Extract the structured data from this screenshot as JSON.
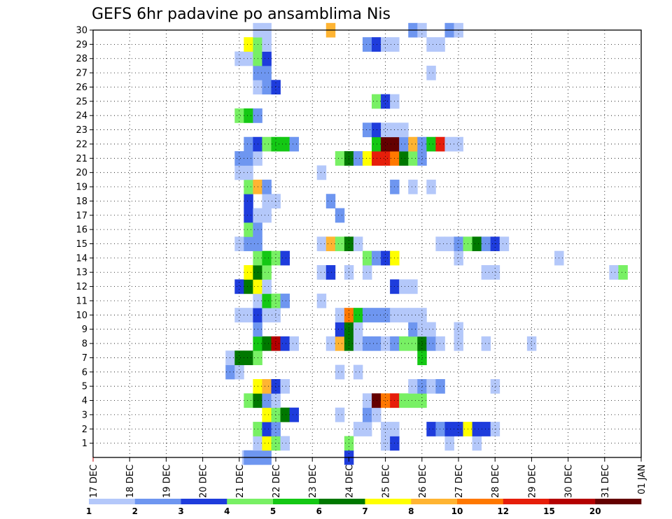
{
  "chart_data": {
    "type": "heatmap",
    "title": "GEFS 6hr padavine po ansamblima Nis",
    "x_ticks": [
      "17 DEC",
      "18 DEC",
      "19 DEC",
      "20 DEC",
      "21 DEC",
      "22 DEC",
      "23 DEC",
      "24 DEC",
      "25 DEC",
      "26 DEC",
      "27 DEC",
      "28 DEC",
      "29 DEC",
      "30 DEC",
      "31 DEC",
      "01 JAN"
    ],
    "y_ticks": [
      "1",
      "2",
      "3",
      "4",
      "5",
      "6",
      "7",
      "8",
      "9",
      "10",
      "11",
      "12",
      "13",
      "14",
      "15",
      "16",
      "17",
      "18",
      "19",
      "20",
      "21",
      "22",
      "23",
      "24",
      "25",
      "26",
      "27",
      "28",
      "29",
      "30"
    ],
    "y_range": [
      0,
      30
    ],
    "x_range": [
      "17 DEC 00Z",
      "01 JAN 00Z"
    ],
    "grid": true,
    "colorbar": {
      "position": "bottom",
      "labels": [
        "1",
        "2",
        "3",
        "4",
        "5",
        "6",
        "7",
        "8",
        "10",
        "12",
        "15",
        "20"
      ],
      "colors": [
        "#b4c8fa",
        "#6e96f0",
        "#1e3cdc",
        "#78f064",
        "#14c814",
        "#007800",
        "#ffff00",
        "#ffb432",
        "#ff7800",
        "#e61e0a",
        "#b40000",
        "#640000"
      ]
    },
    "cells": [
      [
        21.2,
        0,
        0
      ],
      [
        21.25,
        0,
        1
      ],
      [
        21.5,
        0,
        1
      ],
      [
        21.75,
        0,
        1
      ],
      [
        24.0,
        0,
        2
      ],
      [
        21.5,
        1,
        0
      ],
      [
        21.75,
        1,
        6
      ],
      [
        22.0,
        1,
        3
      ],
      [
        22.25,
        1,
        0
      ],
      [
        24.0,
        1,
        3
      ],
      [
        25.0,
        1,
        0
      ],
      [
        25.25,
        1,
        2
      ],
      [
        26.75,
        1,
        0
      ],
      [
        27.5,
        1,
        0
      ],
      [
        21.5,
        2,
        3
      ],
      [
        21.75,
        2,
        2
      ],
      [
        22.0,
        2,
        1
      ],
      [
        24.25,
        2,
        0
      ],
      [
        24.5,
        2,
        0
      ],
      [
        25.0,
        2,
        0
      ],
      [
        25.25,
        2,
        0
      ],
      [
        26.25,
        2,
        2
      ],
      [
        26.5,
        2,
        1
      ],
      [
        26.75,
        2,
        2
      ],
      [
        27.0,
        2,
        2
      ],
      [
        27.25,
        2,
        6
      ],
      [
        27.5,
        2,
        2
      ],
      [
        27.75,
        2,
        2
      ],
      [
        28.0,
        2,
        0
      ],
      [
        21.75,
        3,
        6
      ],
      [
        22.0,
        3,
        3
      ],
      [
        22.25,
        3,
        5
      ],
      [
        22.5,
        3,
        2
      ],
      [
        23.75,
        3,
        0
      ],
      [
        24.5,
        3,
        1
      ],
      [
        24.75,
        3,
        0
      ],
      [
        21.25,
        4,
        3
      ],
      [
        21.5,
        4,
        5
      ],
      [
        21.75,
        4,
        1
      ],
      [
        22.0,
        4,
        0
      ],
      [
        24.5,
        4,
        0
      ],
      [
        24.75,
        4,
        11
      ],
      [
        25.0,
        4,
        8
      ],
      [
        25.25,
        4,
        9
      ],
      [
        25.5,
        4,
        3
      ],
      [
        25.75,
        4,
        3
      ],
      [
        26.0,
        4,
        3
      ],
      [
        21.5,
        5,
        6
      ],
      [
        21.75,
        5,
        7
      ],
      [
        22.0,
        5,
        2
      ],
      [
        22.25,
        5,
        0
      ],
      [
        25.75,
        5,
        0
      ],
      [
        26.0,
        5,
        1
      ],
      [
        26.25,
        5,
        0
      ],
      [
        26.5,
        5,
        1
      ],
      [
        28.0,
        5,
        0
      ],
      [
        20.75,
        6,
        1
      ],
      [
        21.0,
        6,
        0
      ],
      [
        23.75,
        6,
        0
      ],
      [
        24.25,
        6,
        0
      ],
      [
        20.75,
        7,
        0
      ],
      [
        21.0,
        7,
        5
      ],
      [
        21.25,
        7,
        5
      ],
      [
        21.5,
        7,
        3
      ],
      [
        26.0,
        7,
        4
      ],
      [
        21.5,
        8,
        4
      ],
      [
        21.75,
        8,
        5
      ],
      [
        22.0,
        8,
        10
      ],
      [
        22.25,
        8,
        2
      ],
      [
        22.5,
        8,
        0
      ],
      [
        23.5,
        8,
        0
      ],
      [
        23.75,
        8,
        7
      ],
      [
        24.0,
        8,
        5
      ],
      [
        24.25,
        8,
        0
      ],
      [
        24.5,
        8,
        1
      ],
      [
        24.75,
        8,
        1
      ],
      [
        25.0,
        8,
        0
      ],
      [
        25.25,
        8,
        1
      ],
      [
        25.5,
        8,
        3
      ],
      [
        25.75,
        8,
        3
      ],
      [
        26.0,
        8,
        5
      ],
      [
        26.25,
        8,
        1
      ],
      [
        26.5,
        8,
        0
      ],
      [
        27.0,
        8,
        0
      ],
      [
        27.75,
        8,
        0
      ],
      [
        29.0,
        8,
        0
      ],
      [
        21.5,
        9,
        1
      ],
      [
        23.75,
        9,
        2
      ],
      [
        24.0,
        9,
        5
      ],
      [
        24.25,
        9,
        0
      ],
      [
        25.75,
        9,
        1
      ],
      [
        26.0,
        9,
        0
      ],
      [
        26.25,
        9,
        0
      ],
      [
        27.0,
        9,
        0
      ],
      [
        21.0,
        10,
        0
      ],
      [
        21.25,
        10,
        0
      ],
      [
        21.5,
        10,
        2
      ],
      [
        21.75,
        10,
        0
      ],
      [
        22.0,
        10,
        0
      ],
      [
        23.75,
        10,
        0
      ],
      [
        24.0,
        10,
        8
      ],
      [
        24.25,
        10,
        4
      ],
      [
        24.5,
        10,
        1
      ],
      [
        24.75,
        10,
        1
      ],
      [
        25.0,
        10,
        1
      ],
      [
        25.25,
        10,
        0
      ],
      [
        25.5,
        10,
        0
      ],
      [
        25.75,
        10,
        0
      ],
      [
        26.0,
        10,
        0
      ],
      [
        21.5,
        11,
        0
      ],
      [
        21.75,
        11,
        4
      ],
      [
        22.0,
        11,
        3
      ],
      [
        22.25,
        11,
        1
      ],
      [
        23.25,
        11,
        0
      ],
      [
        21.0,
        12,
        2
      ],
      [
        21.25,
        12,
        5
      ],
      [
        21.5,
        12,
        6
      ],
      [
        21.75,
        12,
        0
      ],
      [
        25.25,
        12,
        2
      ],
      [
        25.5,
        12,
        0
      ],
      [
        25.75,
        12,
        0
      ],
      [
        21.25,
        13,
        6
      ],
      [
        21.5,
        13,
        5
      ],
      [
        21.75,
        13,
        3
      ],
      [
        23.25,
        13,
        0
      ],
      [
        23.5,
        13,
        2
      ],
      [
        24.0,
        13,
        0
      ],
      [
        24.5,
        13,
        0
      ],
      [
        27.75,
        13,
        0
      ],
      [
        28.0,
        13,
        0
      ],
      [
        31.25,
        13,
        0
      ],
      [
        31.5,
        13,
        3
      ],
      [
        21.5,
        14,
        3
      ],
      [
        21.75,
        14,
        4
      ],
      [
        22.0,
        14,
        3
      ],
      [
        22.25,
        14,
        2
      ],
      [
        24.5,
        14,
        3
      ],
      [
        24.75,
        14,
        1
      ],
      [
        25.0,
        14,
        2
      ],
      [
        25.25,
        14,
        6
      ],
      [
        27.0,
        14,
        0
      ],
      [
        29.75,
        14,
        0
      ],
      [
        21.0,
        15,
        0
      ],
      [
        21.25,
        15,
        1
      ],
      [
        21.5,
        15,
        1
      ],
      [
        23.25,
        15,
        0
      ],
      [
        23.5,
        15,
        7
      ],
      [
        23.75,
        15,
        3
      ],
      [
        24.0,
        15,
        5
      ],
      [
        24.25,
        15,
        0
      ],
      [
        26.5,
        15,
        0
      ],
      [
        26.75,
        15,
        0
      ],
      [
        27.0,
        15,
        1
      ],
      [
        27.25,
        15,
        3
      ],
      [
        27.5,
        15,
        5
      ],
      [
        27.75,
        15,
        1
      ],
      [
        28.0,
        15,
        2
      ],
      [
        28.25,
        15,
        0
      ],
      [
        21.25,
        16,
        3
      ],
      [
        21.5,
        16,
        1
      ],
      [
        21.25,
        17,
        2
      ],
      [
        21.5,
        17,
        0
      ],
      [
        21.75,
        17,
        0
      ],
      [
        23.75,
        17,
        1
      ],
      [
        21.25,
        18,
        2
      ],
      [
        21.75,
        18,
        0
      ],
      [
        22.0,
        18,
        0
      ],
      [
        23.5,
        18,
        1
      ],
      [
        21.25,
        19,
        3
      ],
      [
        21.5,
        19,
        7
      ],
      [
        21.75,
        19,
        1
      ],
      [
        25.25,
        19,
        1
      ],
      [
        25.75,
        19,
        0
      ],
      [
        26.25,
        19,
        0
      ],
      [
        21.0,
        20,
        0
      ],
      [
        21.25,
        20,
        0
      ],
      [
        23.25,
        20,
        0
      ],
      [
        21.0,
        21,
        1
      ],
      [
        21.25,
        21,
        1
      ],
      [
        21.5,
        21,
        0
      ],
      [
        23.75,
        21,
        3
      ],
      [
        24.0,
        21,
        5
      ],
      [
        24.25,
        21,
        1
      ],
      [
        24.5,
        21,
        6
      ],
      [
        24.75,
        21,
        9
      ],
      [
        25.0,
        21,
        9
      ],
      [
        25.25,
        21,
        8
      ],
      [
        25.5,
        21,
        5
      ],
      [
        25.75,
        21,
        3
      ],
      [
        26.0,
        21,
        1
      ],
      [
        21.25,
        22,
        1
      ],
      [
        21.5,
        22,
        2
      ],
      [
        21.75,
        22,
        3
      ],
      [
        22.0,
        22,
        4
      ],
      [
        22.25,
        22,
        4
      ],
      [
        22.5,
        22,
        1
      ],
      [
        24.75,
        22,
        4
      ],
      [
        25.0,
        22,
        11
      ],
      [
        25.25,
        22,
        11
      ],
      [
        25.5,
        22,
        1
      ],
      [
        25.75,
        22,
        7
      ],
      [
        26.0,
        22,
        1
      ],
      [
        26.25,
        22,
        4
      ],
      [
        26.5,
        22,
        9
      ],
      [
        26.75,
        22,
        0
      ],
      [
        27.0,
        22,
        0
      ],
      [
        24.5,
        23,
        1
      ],
      [
        24.75,
        23,
        2
      ],
      [
        25.0,
        23,
        0
      ],
      [
        25.25,
        23,
        0
      ],
      [
        25.5,
        23,
        0
      ],
      [
        21.0,
        24,
        3
      ],
      [
        21.25,
        24,
        4
      ],
      [
        21.5,
        24,
        1
      ],
      [
        24.75,
        25,
        3
      ],
      [
        25.0,
        25,
        2
      ],
      [
        25.25,
        25,
        0
      ],
      [
        21.5,
        26,
        0
      ],
      [
        21.75,
        26,
        1
      ],
      [
        22.0,
        26,
        2
      ],
      [
        21.5,
        27,
        1
      ],
      [
        21.75,
        27,
        1
      ],
      [
        26.25,
        27,
        0
      ],
      [
        21.0,
        28,
        0
      ],
      [
        21.25,
        28,
        0
      ],
      [
        21.5,
        28,
        3
      ],
      [
        21.75,
        28,
        2
      ],
      [
        21.25,
        29,
        6
      ],
      [
        21.5,
        29,
        3
      ],
      [
        21.75,
        29,
        0
      ],
      [
        24.5,
        29,
        1
      ],
      [
        24.75,
        29,
        2
      ],
      [
        25.0,
        29,
        0
      ],
      [
        25.25,
        29,
        0
      ],
      [
        26.25,
        29,
        0
      ],
      [
        26.5,
        29,
        0
      ],
      [
        21.5,
        30,
        0
      ],
      [
        21.75,
        30,
        0
      ],
      [
        23.5,
        30,
        7
      ],
      [
        25.75,
        30,
        1
      ],
      [
        26.0,
        30,
        0
      ],
      [
        26.75,
        30,
        1
      ],
      [
        27.0,
        30,
        0
      ]
    ]
  }
}
